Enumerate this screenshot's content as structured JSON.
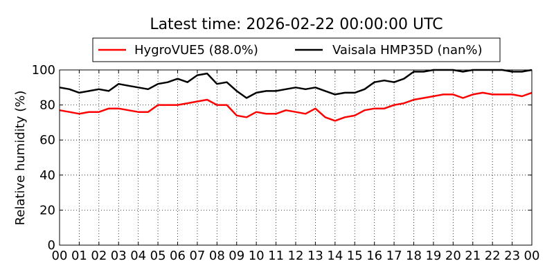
{
  "chart_data": {
    "type": "line",
    "title": "Latest time: 2026-02-22 00:00:00 UTC",
    "xlabel": "",
    "ylabel": "Relative humidity (%)",
    "ylim": [
      0,
      100
    ],
    "yticks": [
      0,
      20,
      40,
      60,
      80,
      100
    ],
    "xlim": [
      0,
      24
    ],
    "xticks": [
      "00",
      "01",
      "02",
      "03",
      "04",
      "05",
      "06",
      "07",
      "08",
      "09",
      "10",
      "11",
      "12",
      "13",
      "14",
      "15",
      "16",
      "17",
      "18",
      "19",
      "20",
      "21",
      "22",
      "23",
      "00"
    ],
    "grid": true,
    "legend_position": "top",
    "x_hours": [
      0,
      0.5,
      1,
      1.5,
      2,
      2.5,
      3,
      3.5,
      4,
      4.5,
      5,
      5.5,
      6,
      6.5,
      7,
      7.5,
      8,
      8.5,
      9,
      9.5,
      10,
      10.5,
      11,
      11.5,
      12,
      12.5,
      13,
      13.5,
      14,
      14.5,
      15,
      15.5,
      16,
      16.5,
      17,
      17.5,
      18,
      18.5,
      19,
      19.5,
      20,
      20.5,
      21,
      21.5,
      22,
      22.5,
      23,
      23.5,
      24
    ],
    "series": [
      {
        "name": "HygroVUE5 (88.0%)",
        "color": "#ff0000",
        "values": [
          77,
          76,
          75,
          76,
          76,
          78,
          78,
          77,
          76,
          76,
          80,
          80,
          80,
          81,
          82,
          83,
          80,
          80,
          74,
          73,
          76,
          75,
          75,
          77,
          76,
          75,
          78,
          73,
          71,
          73,
          74,
          77,
          78,
          78,
          80,
          81,
          83,
          84,
          85,
          86,
          86,
          84,
          86,
          87,
          86,
          86,
          86,
          85,
          87
        ]
      },
      {
        "name": "Vaisala HMP35D (nan%)",
        "color": "#000000",
        "values": [
          90,
          89,
          87,
          88,
          89,
          88,
          92,
          91,
          90,
          89,
          92,
          93,
          95,
          93,
          97,
          98,
          92,
          93,
          88,
          84,
          87,
          88,
          88,
          89,
          90,
          89,
          90,
          88,
          86,
          87,
          87,
          89,
          93,
          94,
          93,
          95,
          99,
          99,
          100,
          100,
          100,
          99,
          100,
          100,
          100,
          100,
          99,
          99,
          100
        ]
      }
    ]
  }
}
